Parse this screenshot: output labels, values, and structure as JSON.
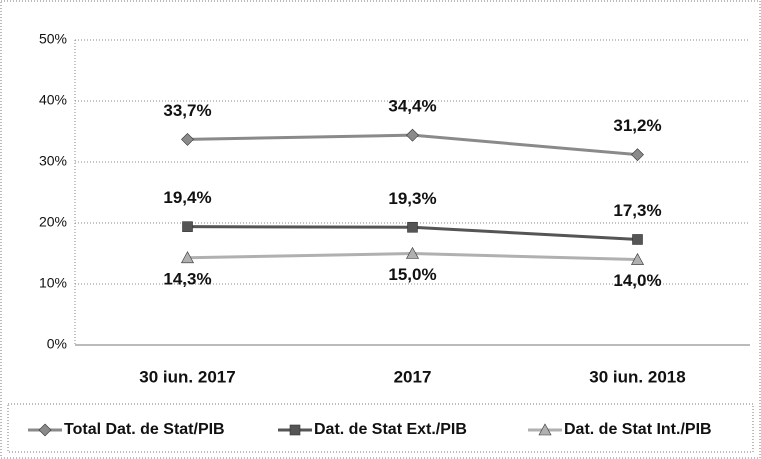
{
  "chart_data": {
    "type": "line",
    "categories": [
      "30 iun. 2017",
      "2017",
      "30 iun. 2018"
    ],
    "series": [
      {
        "name": "Total Dat. de Stat/PIB",
        "color": "#8a8a8a",
        "marker": "diamond",
        "label_position": "above",
        "values": [
          33.7,
          34.4,
          31.2
        ],
        "value_labels": [
          "33,7%",
          "34,4%",
          "31,2%"
        ]
      },
      {
        "name": "Dat. de Stat Ext./PIB",
        "color": "#555555",
        "marker": "square",
        "label_position": "above",
        "values": [
          19.4,
          19.3,
          17.3
        ],
        "value_labels": [
          "19,4%",
          "19,3%",
          "17,3%"
        ]
      },
      {
        "name": "Dat. de Stat Int./PIB",
        "color": "#b0b0b0",
        "marker": "triangle",
        "label_position": "below",
        "values": [
          14.3,
          15.0,
          14.0
        ],
        "value_labels": [
          "14,3%",
          "15,0%",
          "14,0%"
        ]
      }
    ],
    "ylim": [
      0,
      50
    ],
    "yticks": [
      {
        "value": 0,
        "label": "0%"
      },
      {
        "value": 10,
        "label": "10%"
      },
      {
        "value": 20,
        "label": "20%"
      },
      {
        "value": 30,
        "label": "30%"
      },
      {
        "value": 40,
        "label": "40%"
      },
      {
        "value": 50,
        "label": "50%"
      }
    ],
    "grid": true,
    "legend": "bottom"
  }
}
